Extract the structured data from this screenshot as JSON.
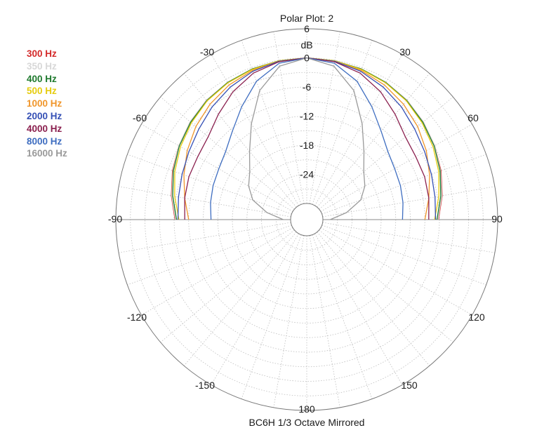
{
  "chart_data": {
    "type": "polar-line",
    "title": "Polar Plot: 2",
    "footer": "BC6H   1/3 Octave   Mirrored",
    "radial_unit": "dB",
    "r_range": [
      -30,
      6
    ],
    "r_ticks": [
      6,
      0,
      -6,
      -12,
      -18,
      -24
    ],
    "angle_labels": [
      "-30",
      "30",
      "-60",
      "60",
      "-90",
      "90",
      "-120",
      "120",
      "-150",
      "150",
      "180"
    ],
    "angle_label_values": [
      -30,
      30,
      -60,
      60,
      -90,
      90,
      -120,
      120,
      -150,
      150,
      180
    ],
    "angles": [
      0,
      10,
      20,
      30,
      40,
      50,
      60,
      70,
      80,
      90
    ],
    "series": [
      {
        "name": "300 Hz",
        "color": "#d42a2a",
        "values": [
          0,
          -0.1,
          -0.3,
          -0.7,
          -1.2,
          -2.0,
          -2.9,
          -3.9,
          -5.0,
          -6.2
        ]
      },
      {
        "name": "350 Hz",
        "color": "#d8d8d8",
        "values": [
          0,
          -0.1,
          -0.3,
          -0.7,
          -1.2,
          -2.0,
          -2.9,
          -4.0,
          -5.1,
          -6.3
        ]
      },
      {
        "name": "400 Hz",
        "color": "#1f7a2e",
        "values": [
          0,
          -0.1,
          -0.3,
          -0.7,
          -1.3,
          -2.1,
          -3.0,
          -4.1,
          -5.3,
          -6.5
        ]
      },
      {
        "name": "500 Hz",
        "color": "#e6cc0f",
        "values": [
          0,
          -0.1,
          -0.4,
          -0.8,
          -1.4,
          -2.3,
          -3.3,
          -4.4,
          -5.7,
          -7.0
        ]
      },
      {
        "name": "1000 Hz",
        "color": "#f0962b",
        "values": [
          0,
          -0.2,
          -0.6,
          -1.3,
          -2.3,
          -3.5,
          -4.9,
          -6.4,
          -7.8,
          -9.0
        ]
      },
      {
        "name": "2000 Hz",
        "color": "#3550b5",
        "values": [
          0,
          -0.2,
          -0.8,
          -1.8,
          -3.0,
          -4.3,
          -5.3,
          -6.0,
          -6.5,
          -6.8
        ]
      },
      {
        "name": "4000 Hz",
        "color": "#8a1f4e",
        "values": [
          0,
          -0.3,
          -1.2,
          -2.9,
          -5.0,
          -6.8,
          -7.4,
          -7.5,
          -7.8,
          -8.2
        ]
      },
      {
        "name": "8000 Hz",
        "color": "#3e6dc0",
        "values": [
          0,
          -0.6,
          -3.0,
          -6.5,
          -9.5,
          -11.5,
          -12.4,
          -12.8,
          -13.2,
          -13.6
        ]
      },
      {
        "name": "16000 Hz",
        "color": "#9a9a9a",
        "values": [
          0,
          -1.2,
          -5.0,
          -10.5,
          -15.0,
          -18.0,
          -19.5,
          -21.5,
          -25.0,
          -28.5
        ]
      }
    ],
    "grid": true,
    "legend_position": "top-left",
    "mirrored": true
  }
}
